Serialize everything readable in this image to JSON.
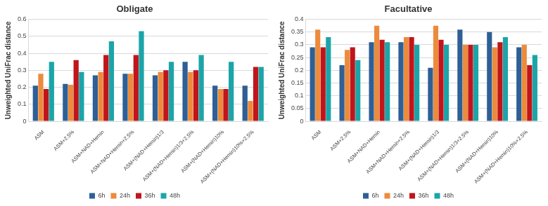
{
  "chart_data": [
    {
      "type": "bar",
      "title": "Obligate",
      "y_label": "Unweighted UniFrac distance",
      "categories": [
        "ASM",
        "ASM+2.5%",
        "ASM+NAD+Hemin",
        "ASM+NAD+Hemin+2.5%",
        "ASM+(NAD+Hemin)1/3",
        "ASM+(NAD+Hemin)1/3+2.5%",
        "ASM+(NAD+Hemin)10%",
        "ASM+(NAD+Hemin)10%+2.5%"
      ],
      "series": [
        {
          "name": "6h",
          "color": "#2e5f95",
          "values": [
            0.21,
            0.22,
            0.27,
            0.28,
            0.27,
            0.35,
            0.21,
            0.21
          ]
        },
        {
          "name": "24h",
          "color": "#ec8b3c",
          "values": [
            0.28,
            0.215,
            0.29,
            0.28,
            0.29,
            0.29,
            0.19,
            0.12
          ]
        },
        {
          "name": "36h",
          "color": "#c0151b",
          "values": [
            0.19,
            0.36,
            0.39,
            0.39,
            0.3,
            0.3,
            0.19,
            0.32
          ]
        },
        {
          "name": "48h",
          "color": "#1ca5a8",
          "values": [
            0.35,
            0.29,
            0.47,
            0.53,
            0.35,
            0.39,
            0.35,
            0.32
          ]
        }
      ],
      "ylim": [
        0,
        0.6
      ],
      "yticks": [
        0,
        0.1,
        0.2,
        0.3,
        0.4,
        0.5,
        0.6
      ],
      "grid": true,
      "legend": "bottom"
    },
    {
      "type": "bar",
      "title": "Facultative",
      "y_label": "Unweighted UniFrac distance",
      "categories": [
        "ASM",
        "ASM+2.5%",
        "ASM+NAD+Hemin",
        "ASM+NAD+Hemin+2.5%",
        "ASM+(NAD+Hemin)1/3",
        "ASM+(NAD+Hemin)1/3+2.5%",
        "ASM+(NAD+Hemin)10%",
        "ASM+(NAD+Hemin)10%+2.5%"
      ],
      "series": [
        {
          "name": "6h",
          "color": "#2e5f95",
          "values": [
            0.29,
            0.22,
            0.31,
            0.31,
            0.21,
            0.36,
            0.35,
            0.29
          ]
        },
        {
          "name": "24h",
          "color": "#ec8b3c",
          "values": [
            0.36,
            0.28,
            0.375,
            0.33,
            0.375,
            0.3,
            0.29,
            0.3
          ]
        },
        {
          "name": "36h",
          "color": "#c0151b",
          "values": [
            0.29,
            0.29,
            0.32,
            0.33,
            0.32,
            0.3,
            0.31,
            0.22
          ]
        },
        {
          "name": "48h",
          "color": "#1ca5a8",
          "values": [
            0.33,
            0.24,
            0.31,
            0.3,
            0.3,
            0.3,
            0.33,
            0.26
          ]
        }
      ],
      "ylim": [
        0,
        0.4
      ],
      "yticks": [
        0,
        0.05,
        0.1,
        0.15,
        0.2,
        0.25,
        0.3,
        0.35,
        0.4
      ],
      "grid": true,
      "legend": "bottom"
    }
  ]
}
